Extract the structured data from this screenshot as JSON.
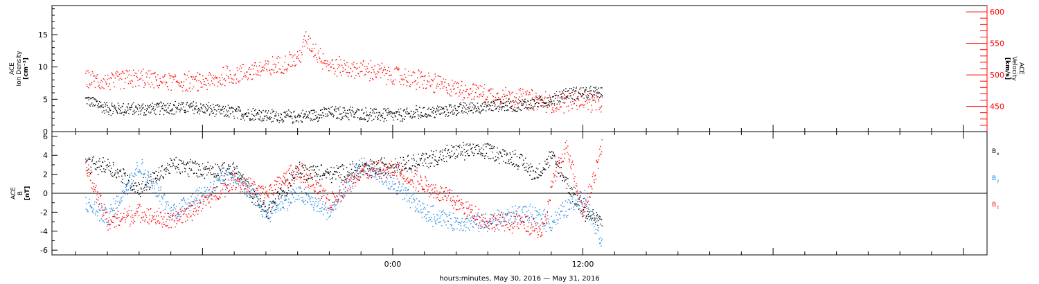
{
  "chart_data": [
    {
      "type": "scatter",
      "panel": "top",
      "ylabel_left": [
        "ACE",
        "Ion Density",
        "[cm⁻³]"
      ],
      "ylabel_right": [
        "ACE",
        "Velocity",
        "[km/s]"
      ],
      "ylim_left": [
        0,
        19.5
      ],
      "ylim_right": [
        410,
        610
      ],
      "yticks_left": [
        "0",
        "5",
        "10",
        "15"
      ],
      "yticks_right": [
        "450",
        "500",
        "550",
        "600"
      ],
      "series": [
        {
          "name": "Ion Density",
          "axis": "left",
          "color": "#000000",
          "x": [
            -19.4,
            -18.0,
            -16.0,
            -14.0,
            -12.0,
            -10.0,
            -8.0,
            -6.0,
            -4.0,
            -2.0,
            0.0,
            2.0,
            4.0,
            6.0,
            8.0,
            10.0,
            11.0,
            13.2
          ],
          "y": [
            5.0,
            3.6,
            3.5,
            3.8,
            3.6,
            3.0,
            2.5,
            2.3,
            3.0,
            2.8,
            2.5,
            3.0,
            3.5,
            4.0,
            4.2,
            5.0,
            6.0,
            6.0
          ]
        },
        {
          "name": "Velocity",
          "axis": "right",
          "color": "#ff0000",
          "x": [
            -19.4,
            -18.0,
            -16.0,
            -14.0,
            -12.0,
            -10.0,
            -8.0,
            -6.0,
            -5.5,
            -4.0,
            -2.0,
            0.0,
            2.0,
            4.0,
            6.0,
            8.0,
            10.0,
            12.0,
            13.2
          ],
          "y": [
            495,
            490,
            495,
            490,
            488,
            500,
            510,
            525,
            555,
            515,
            510,
            500,
            490,
            480,
            470,
            465,
            455,
            460,
            455
          ]
        }
      ]
    },
    {
      "type": "scatter",
      "panel": "bottom",
      "ylabel_left": [
        "ACE",
        "B",
        "[nT]"
      ],
      "ylim": [
        -6.5,
        6.5
      ],
      "yticks": [
        "-6",
        "-4",
        "-2",
        "0",
        "2",
        "4",
        "6"
      ],
      "series": [
        {
          "name": "Bx",
          "color": "#000000",
          "x": [
            -19.4,
            -18.0,
            -16.0,
            -14.0,
            -12.0,
            -10.0,
            -8.0,
            -6.0,
            -4.0,
            -2.0,
            0.0,
            2.0,
            4.0,
            6.0,
            8.0,
            9.0,
            10.0,
            12.0,
            13.2
          ],
          "y": [
            3.0,
            3.0,
            0.5,
            3.0,
            2.5,
            2.5,
            -2.0,
            2.5,
            2.0,
            2.5,
            3.0,
            3.5,
            4.5,
            4.5,
            3.5,
            2.0,
            4.0,
            -2.0,
            -3.0
          ]
        },
        {
          "name": "By",
          "color": "#1e88e5",
          "x": [
            -19.4,
            -18.0,
            -16.0,
            -14.0,
            -12.0,
            -10.0,
            -8.0,
            -6.0,
            -4.0,
            -2.0,
            0.0,
            2.0,
            4.0,
            6.0,
            8.0,
            10.0,
            12.0,
            13.2
          ],
          "y": [
            -1.0,
            -2.5,
            3.0,
            -2.0,
            0.0,
            2.0,
            -2.0,
            0.0,
            -2.0,
            3.0,
            1.0,
            -2.0,
            -3.0,
            -3.0,
            -2.0,
            -3.0,
            0.0,
            -5.0
          ]
        },
        {
          "name": "Bz",
          "color": "#ff0000",
          "x": [
            -19.4,
            -18.0,
            -16.0,
            -14.0,
            -12.0,
            -10.0,
            -8.0,
            -6.0,
            -4.0,
            -2.0,
            0.0,
            2.0,
            4.0,
            6.0,
            8.0,
            9.5,
            10.0,
            11.0,
            12.0,
            13.2
          ],
          "y": [
            3.0,
            -3.0,
            -2.0,
            -3.0,
            -1.0,
            1.5,
            0.0,
            2.5,
            -1.0,
            2.5,
            2.5,
            1.0,
            -1.0,
            -3.0,
            -3.0,
            -4.0,
            1.0,
            5.0,
            -2.0,
            5.0
          ]
        }
      ]
    }
  ],
  "legend": {
    "bx": "B",
    "bx_sub": "x",
    "by": "B",
    "by_sub": "y",
    "bz": "B",
    "bz_sub": "z"
  },
  "x_axis": {
    "label": "hours:minutes, May 30, 2016 — May 31, 2016",
    "ticks": [
      "0:00",
      "12:00"
    ],
    "xlim_hours": [
      -21.5,
      37.5
    ]
  }
}
